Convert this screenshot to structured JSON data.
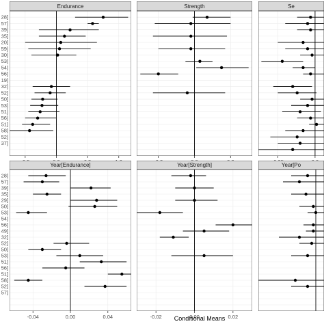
{
  "chart_data": {
    "type": "scatter",
    "style": "forest plot (point estimate with horizontal interval), faceted",
    "grid": true,
    "xlabel": "Conditional Means",
    "row_tick_labels_visible": [
      "28]",
      "57]",
      "39]",
      "35]",
      "20]",
      "59]",
      "30]",
      "53]",
      "54]",
      "56]",
      "19]",
      "32]",
      "52]",
      "50]",
      "53]",
      "51]",
      "56]",
      "51]",
      "58]",
      "52]",
      "37]"
    ],
    "row_tick_labels_visible_bottom": [
      "28]",
      "57]",
      "39]",
      "35]",
      "29]",
      "50]",
      "53]",
      "54]",
      "56]",
      "49]",
      "32]",
      "52]",
      "50]",
      "53]",
      "51]",
      "56]",
      "51]",
      "58]",
      "52]",
      "57]"
    ],
    "facets": [
      {
        "title": "Endurance",
        "xlim": [
          -0.75,
          1.2
        ],
        "xticks": [
          -0.5,
          0.0,
          0.5,
          1.0
        ],
        "xtick_labels": [
          "-0.5",
          "0.0",
          "0.5",
          "1.0"
        ],
        "points": [
          {
            "row": 1,
            "x": 0.75,
            "lo": 0.3,
            "hi": 1.15
          },
          {
            "row": 2,
            "x": 0.58,
            "lo": 0.5,
            "hi": 0.68
          },
          {
            "row": 3,
            "x": 0.22,
            "lo": -0.28,
            "hi": 0.68
          },
          {
            "row": 4,
            "x": 0.13,
            "lo": -0.28,
            "hi": 0.47
          },
          {
            "row": 5,
            "x": 0.07,
            "lo": -0.5,
            "hi": 0.65
          },
          {
            "row": 6,
            "x": 0.05,
            "lo": -0.45,
            "hi": 0.55
          },
          {
            "row": 7,
            "x": 0.02,
            "lo": -0.4,
            "hi": 0.32
          },
          {
            "row": 12,
            "x": -0.08,
            "lo": -0.38,
            "hi": 0.22
          },
          {
            "row": 13,
            "x": -0.1,
            "lo": -0.35,
            "hi": 0.15
          },
          {
            "row": 14,
            "x": -0.22,
            "lo": -0.4,
            "hi": 0.02
          },
          {
            "row": 15,
            "x": -0.23,
            "lo": -0.42,
            "hi": 0.03
          },
          {
            "row": 16,
            "x": -0.26,
            "lo": -0.45,
            "hi": 0.05
          },
          {
            "row": 17,
            "x": -0.3,
            "lo": -0.5,
            "hi": 0.0
          },
          {
            "row": 18,
            "x": -0.38,
            "lo": -0.55,
            "hi": -0.1
          },
          {
            "row": 19,
            "x": -0.43,
            "lo": -0.75,
            "hi": -0.05
          }
        ]
      },
      {
        "title": "Strength",
        "xlim": [
          -0.32,
          0.32
        ],
        "xticks": [
          -0.2,
          0.0,
          0.2
        ],
        "xtick_labels": [
          "-0.2",
          "0.0",
          "0.2"
        ],
        "points": [
          {
            "row": 1,
            "x": 0.07,
            "lo": -0.01,
            "hi": 0.2
          },
          {
            "row": 2,
            "x": -0.02,
            "lo": -0.22,
            "hi": 0.2
          },
          {
            "row": 4,
            "x": -0.02,
            "lo": -0.23,
            "hi": 0.18
          },
          {
            "row": 6,
            "x": -0.02,
            "lo": -0.2,
            "hi": 0.17
          },
          {
            "row": 8,
            "x": 0.03,
            "lo": -0.05,
            "hi": 0.1
          },
          {
            "row": 9,
            "x": 0.15,
            "lo": 0.01,
            "hi": 0.3
          },
          {
            "row": 10,
            "x": -0.2,
            "lo": -0.3,
            "hi": -0.09
          },
          {
            "row": 13,
            "x": -0.04,
            "lo": -0.23,
            "hi": 0.17
          }
        ]
      },
      {
        "title": "Se",
        "xlim": [
          -0.38,
          0.06
        ],
        "xticks": [
          -0.25,
          0.0
        ],
        "xtick_labels": [
          "-0.25",
          "0.0"
        ],
        "points": [
          {
            "row": 1,
            "x": -0.03,
            "lo": -0.12,
            "hi": 0.06
          },
          {
            "row": 2,
            "x": -0.05,
            "lo": -0.2,
            "hi": 0.06
          },
          {
            "row": 3,
            "x": -0.03,
            "lo": -0.12,
            "hi": 0.06
          },
          {
            "row": 5,
            "x": -0.08,
            "lo": -0.25,
            "hi": 0.06
          },
          {
            "row": 6,
            "x": -0.05,
            "lo": -0.2,
            "hi": 0.06
          },
          {
            "row": 7,
            "x": -0.02,
            "lo": -0.1,
            "hi": 0.06
          },
          {
            "row": 8,
            "x": -0.22,
            "lo": -0.36,
            "hi": -0.08
          },
          {
            "row": 9,
            "x": -0.08,
            "lo": -0.15,
            "hi": 0.0
          },
          {
            "row": 10,
            "x": -0.03,
            "lo": -0.08,
            "hi": 0.06
          },
          {
            "row": 12,
            "x": -0.15,
            "lo": -0.28,
            "hi": -0.02
          },
          {
            "row": 13,
            "x": -0.12,
            "lo": -0.25,
            "hi": 0.01
          },
          {
            "row": 14,
            "x": -0.02,
            "lo": -0.1,
            "hi": 0.06
          },
          {
            "row": 15,
            "x": -0.05,
            "lo": -0.16,
            "hi": 0.06
          },
          {
            "row": 16,
            "x": -0.1,
            "lo": -0.22,
            "hi": 0.04
          },
          {
            "row": 17,
            "x": -0.03,
            "lo": -0.12,
            "hi": 0.06
          },
          {
            "row": 18,
            "x": 0.01,
            "lo": -0.04,
            "hi": 0.06
          },
          {
            "row": 19,
            "x": -0.08,
            "lo": -0.2,
            "hi": 0.06
          },
          {
            "row": 20,
            "x": -0.12,
            "lo": -0.3,
            "hi": 0.06
          },
          {
            "row": 21,
            "x": -0.1,
            "lo": -0.25,
            "hi": 0.06
          },
          {
            "row": 22,
            "x": -0.15,
            "lo": -0.38,
            "hi": 0.06
          }
        ]
      },
      {
        "title": "Year[Endurance]",
        "xlim": [
          -0.065,
          0.065
        ],
        "xticks": [
          -0.04,
          0.0,
          0.04
        ],
        "xtick_labels": [
          "-0.04",
          "0.00",
          "0.04"
        ],
        "points": [
          {
            "row": 1,
            "x": -0.026,
            "lo": -0.045,
            "hi": -0.005
          },
          {
            "row": 2,
            "x": -0.03,
            "lo": -0.05,
            "hi": -0.012
          },
          {
            "row": 3,
            "x": 0.022,
            "lo": 0.0,
            "hi": 0.043
          },
          {
            "row": 4,
            "x": -0.025,
            "lo": -0.04,
            "hi": -0.01
          },
          {
            "row": 5,
            "x": 0.028,
            "lo": 0.0,
            "hi": 0.05
          },
          {
            "row": 6,
            "x": 0.026,
            "lo": -0.002,
            "hi": 0.05
          },
          {
            "row": 7,
            "x": -0.045,
            "lo": -0.058,
            "hi": -0.025
          },
          {
            "row": 12,
            "x": -0.004,
            "lo": -0.018,
            "hi": 0.02
          },
          {
            "row": 13,
            "x": -0.03,
            "lo": -0.045,
            "hi": -0.01
          },
          {
            "row": 14,
            "x": 0.01,
            "lo": -0.015,
            "hi": 0.035
          },
          {
            "row": 15,
            "x": 0.033,
            "lo": 0.01,
            "hi": 0.06
          },
          {
            "row": 16,
            "x": -0.005,
            "lo": -0.03,
            "hi": 0.015
          },
          {
            "row": 17,
            "x": 0.055,
            "lo": 0.04,
            "hi": 0.065
          },
          {
            "row": 18,
            "x": -0.045,
            "lo": -0.06,
            "hi": -0.03
          },
          {
            "row": 19,
            "x": 0.037,
            "lo": 0.015,
            "hi": 0.06
          }
        ]
      },
      {
        "title": "Year[Strength]",
        "xlim": [
          -0.03,
          0.03
        ],
        "xticks": [
          -0.02,
          0.0,
          0.02
        ],
        "xtick_labels": [
          "-0.02",
          "0.00",
          "0.02"
        ],
        "points": [
          {
            "row": 1,
            "x": -0.002,
            "lo": -0.012,
            "hi": 0.006
          },
          {
            "row": 3,
            "x": 0.0,
            "lo": -0.01,
            "hi": 0.01
          },
          {
            "row": 5,
            "x": 0.0,
            "lo": -0.01,
            "hi": 0.012
          },
          {
            "row": 7,
            "x": -0.018,
            "lo": -0.03,
            "hi": -0.006
          },
          {
            "row": 9,
            "x": 0.02,
            "lo": 0.011,
            "hi": 0.03
          },
          {
            "row": 10,
            "x": 0.005,
            "lo": -0.006,
            "hi": 0.018
          },
          {
            "row": 11,
            "x": -0.011,
            "lo": -0.018,
            "hi": -0.003
          },
          {
            "row": 14,
            "x": 0.005,
            "lo": -0.012,
            "hi": 0.02
          }
        ]
      },
      {
        "title": "Year[Po",
        "xlim": [
          -0.07,
          0.01
        ],
        "xticks": [],
        "xtick_labels": [],
        "points": [
          {
            "row": 1,
            "x": -0.01,
            "lo": -0.03,
            "hi": 0.01
          },
          {
            "row": 2,
            "x": -0.02,
            "lo": -0.04,
            "hi": 0.01
          },
          {
            "row": 4,
            "x": -0.012,
            "lo": -0.03,
            "hi": 0.01
          },
          {
            "row": 6,
            "x": -0.003,
            "lo": -0.02,
            "hi": 0.01
          },
          {
            "row": 7,
            "x": 0.0,
            "lo": -0.01,
            "hi": 0.01
          },
          {
            "row": 9,
            "x": -0.003,
            "lo": -0.015,
            "hi": 0.01
          },
          {
            "row": 10,
            "x": -0.003,
            "lo": -0.012,
            "hi": 0.01
          },
          {
            "row": 11,
            "x": -0.02,
            "lo": -0.045,
            "hi": 0.01
          },
          {
            "row": 12,
            "x": -0.005,
            "lo": -0.02,
            "hi": 0.01
          },
          {
            "row": 14,
            "x": -0.01,
            "lo": -0.03,
            "hi": 0.01
          },
          {
            "row": 18,
            "x": -0.025,
            "lo": -0.07,
            "hi": 0.01
          },
          {
            "row": 19,
            "x": -0.01,
            "lo": -0.03,
            "hi": 0.01
          }
        ]
      }
    ]
  }
}
